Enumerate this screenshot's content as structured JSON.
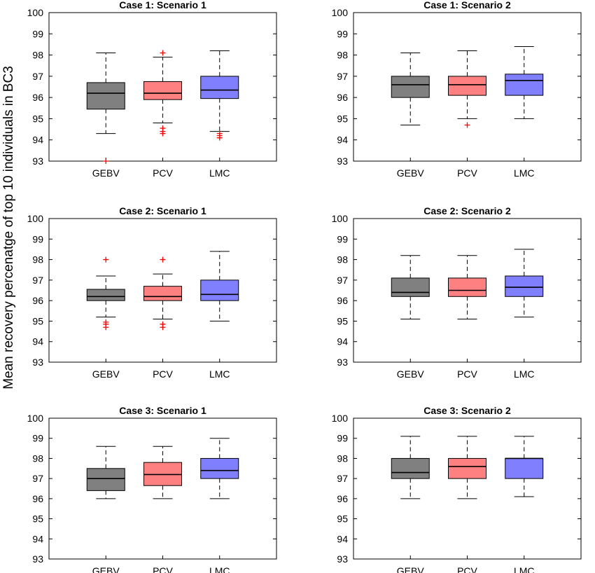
{
  "figure": {
    "ylabel": "Mean recovery percenatge of top 10 individuals in BC3"
  },
  "colors": {
    "GEBV": "#808080",
    "PCV": "#ff8080",
    "LMC": "#8080ff",
    "outlier": "#ff0000",
    "median": "#000000"
  },
  "chart_data": [
    {
      "type": "box",
      "title": "Case 1: Scenario 1",
      "ylim": [
        93,
        100
      ],
      "yticks": [
        93,
        94,
        95,
        96,
        97,
        98,
        99,
        100
      ],
      "categories": [
        "GEBV",
        "PCV",
        "LMC"
      ],
      "boxes": [
        {
          "min": 94.3,
          "q1": 95.45,
          "median": 96.2,
          "q3": 96.7,
          "max": 98.1,
          "outliers": [
            93.0
          ]
        },
        {
          "min": 94.8,
          "q1": 95.9,
          "median": 96.2,
          "q3": 96.75,
          "max": 97.9,
          "outliers": [
            98.1,
            94.55,
            94.4,
            94.3
          ]
        },
        {
          "min": 94.4,
          "q1": 95.95,
          "median": 96.35,
          "q3": 97.0,
          "max": 98.2,
          "outliers": [
            94.3,
            94.2,
            94.1
          ]
        }
      ]
    },
    {
      "type": "box",
      "title": "Case 1: Scenario 2",
      "ylim": [
        93,
        100
      ],
      "yticks": [
        93,
        94,
        95,
        96,
        97,
        98,
        99,
        100
      ],
      "categories": [
        "GEBV",
        "PCV",
        "LMC"
      ],
      "boxes": [
        {
          "min": 94.7,
          "q1": 96.0,
          "median": 96.6,
          "q3": 97.0,
          "max": 98.1,
          "outliers": []
        },
        {
          "min": 95.0,
          "q1": 96.1,
          "median": 96.6,
          "q3": 97.0,
          "max": 98.2,
          "outliers": [
            94.7
          ]
        },
        {
          "min": 95.0,
          "q1": 96.1,
          "median": 96.8,
          "q3": 97.1,
          "max": 98.4,
          "outliers": []
        }
      ]
    },
    {
      "type": "box",
      "title": "Case 2: Scenario 1",
      "ylim": [
        93,
        100
      ],
      "yticks": [
        93,
        94,
        95,
        96,
        97,
        98,
        99,
        100
      ],
      "categories": [
        "GEBV",
        "PCV",
        "LMC"
      ],
      "boxes": [
        {
          "min": 95.2,
          "q1": 96.0,
          "median": 96.2,
          "q3": 96.55,
          "max": 97.2,
          "outliers": [
            98.0,
            94.95,
            94.85,
            94.7
          ]
        },
        {
          "min": 95.1,
          "q1": 96.0,
          "median": 96.2,
          "q3": 96.7,
          "max": 97.3,
          "outliers": [
            98.0,
            94.85,
            94.7
          ]
        },
        {
          "min": 95.0,
          "q1": 96.0,
          "median": 96.3,
          "q3": 97.0,
          "max": 98.4,
          "outliers": []
        }
      ]
    },
    {
      "type": "box",
      "title": "Case 2: Scenario 2",
      "ylim": [
        93,
        100
      ],
      "yticks": [
        93,
        94,
        95,
        96,
        97,
        98,
        99,
        100
      ],
      "categories": [
        "GEBV",
        "PCV",
        "LMC"
      ],
      "boxes": [
        {
          "min": 95.1,
          "q1": 96.2,
          "median": 96.4,
          "q3": 97.1,
          "max": 98.2,
          "outliers": []
        },
        {
          "min": 95.1,
          "q1": 96.2,
          "median": 96.5,
          "q3": 97.1,
          "max": 98.2,
          "outliers": []
        },
        {
          "min": 95.2,
          "q1": 96.2,
          "median": 96.65,
          "q3": 97.2,
          "max": 98.5,
          "outliers": []
        }
      ]
    },
    {
      "type": "box",
      "title": "Case 3: Scenario 1",
      "ylim": [
        93,
        100
      ],
      "yticks": [
        93,
        94,
        95,
        96,
        97,
        98,
        99,
        100
      ],
      "categories": [
        "GEBV",
        "PCV",
        "LMC"
      ],
      "boxes": [
        {
          "min": 96.0,
          "q1": 96.4,
          "median": 97.0,
          "q3": 97.5,
          "max": 98.6,
          "outliers": []
        },
        {
          "min": 96.0,
          "q1": 96.65,
          "median": 97.2,
          "q3": 97.8,
          "max": 98.6,
          "outliers": []
        },
        {
          "min": 96.0,
          "q1": 97.0,
          "median": 97.4,
          "q3": 98.0,
          "max": 99.0,
          "outliers": []
        }
      ]
    },
    {
      "type": "box",
      "title": "Case 3: Scenario 2",
      "ylim": [
        93,
        100
      ],
      "yticks": [
        93,
        94,
        95,
        96,
        97,
        98,
        99,
        100
      ],
      "categories": [
        "GEBV",
        "PCV",
        "LMC"
      ],
      "boxes": [
        {
          "min": 96.0,
          "q1": 97.0,
          "median": 97.3,
          "q3": 98.0,
          "max": 99.1,
          "outliers": []
        },
        {
          "min": 96.0,
          "q1": 97.0,
          "median": 97.6,
          "q3": 98.0,
          "max": 99.1,
          "outliers": []
        },
        {
          "min": 96.1,
          "q1": 97.0,
          "median": 98.0,
          "q3": 98.0,
          "max": 99.1,
          "outliers": []
        }
      ]
    }
  ]
}
